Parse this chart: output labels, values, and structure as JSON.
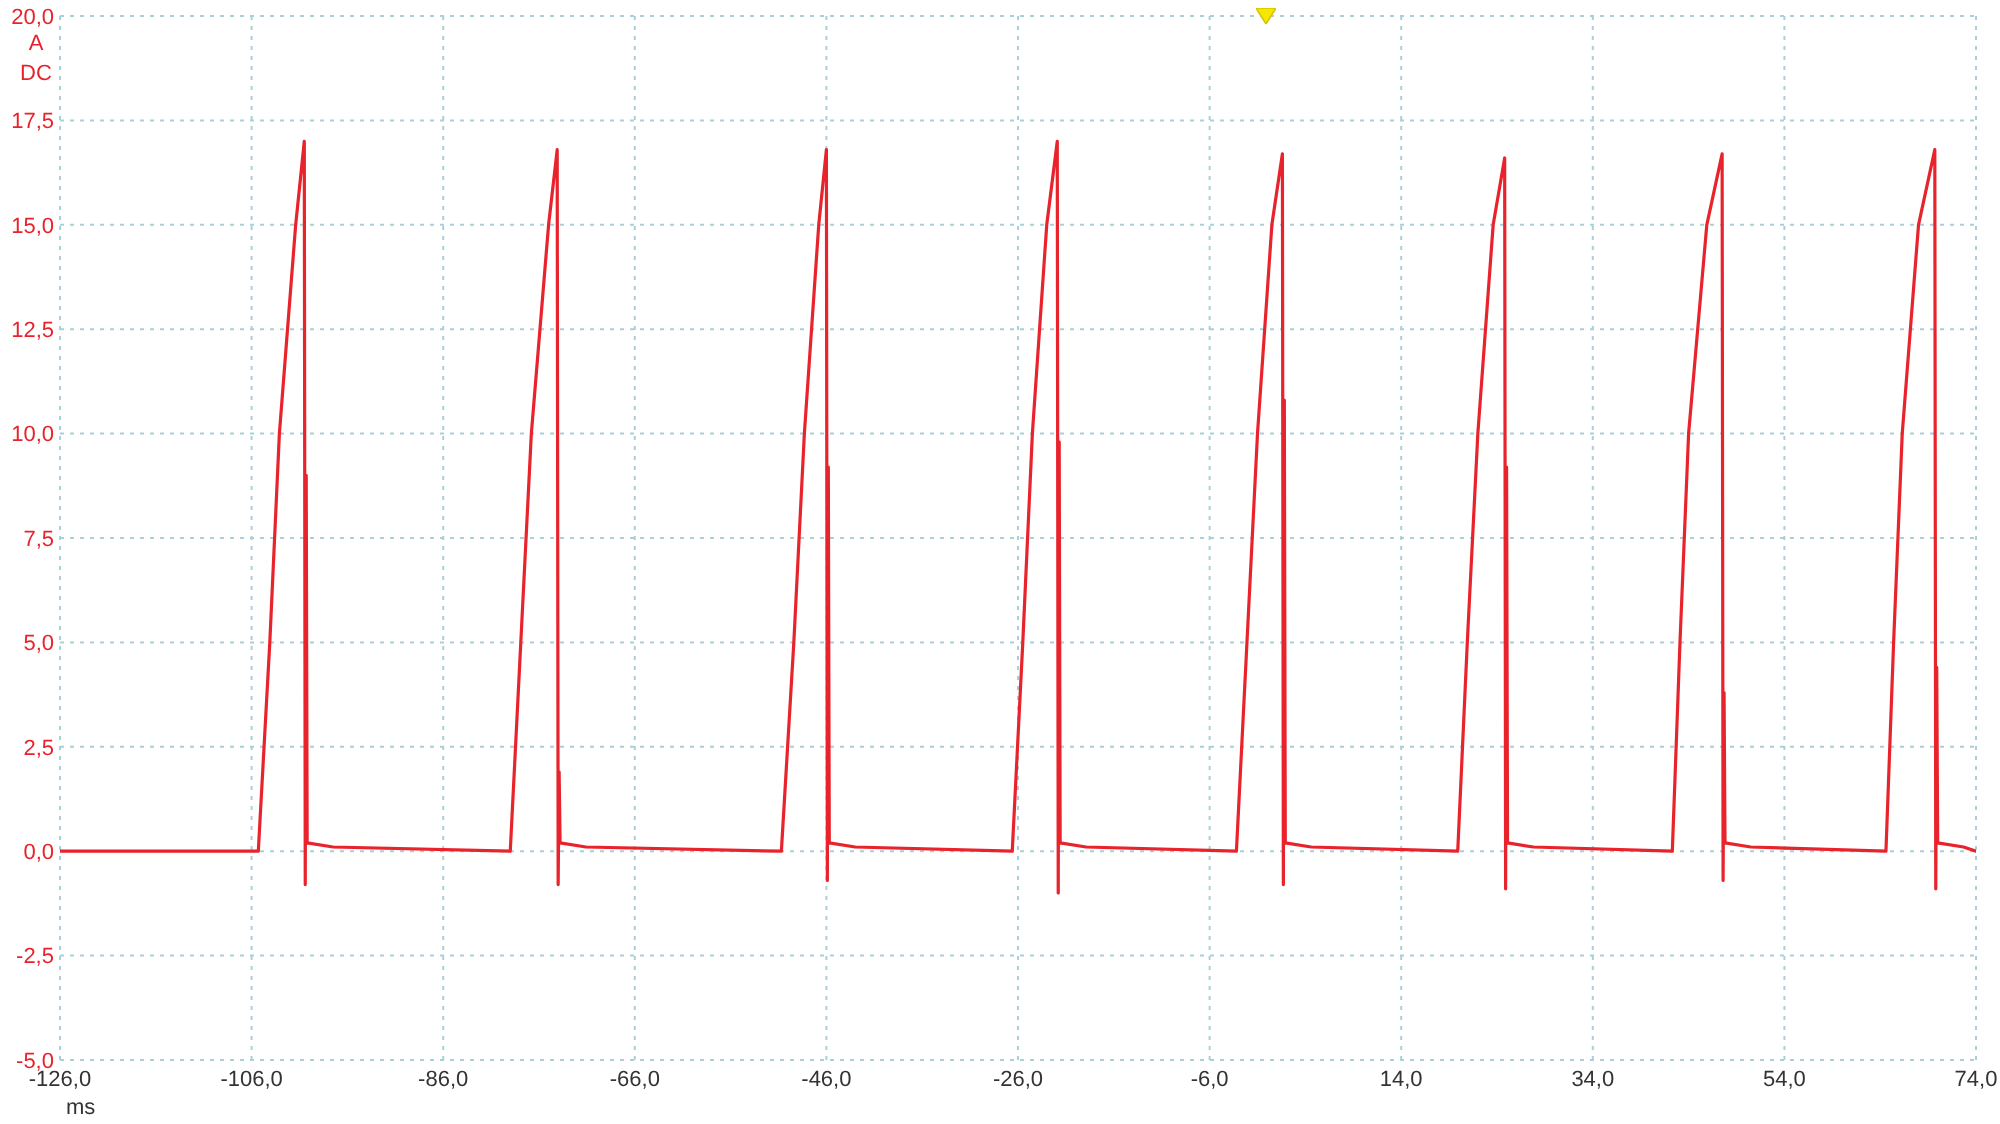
{
  "chart_data": {
    "type": "line",
    "xlabel": "ms",
    "ylabel": "A",
    "annotations": [
      "DC"
    ],
    "x": [
      -126,
      -105.3,
      -104.1,
      -103.1,
      -101.4,
      -100.5,
      -100.4,
      -100.3,
      -100.2,
      -97.5,
      -79.0,
      -77.9,
      -76.8,
      -75.0,
      -74.1,
      -74.0,
      -73.9,
      -73.8,
      -71.1,
      -50.7,
      -49.4,
      -48.3,
      -46.8,
      -46.0,
      -45.9,
      -45.8,
      -45.7,
      -43.0,
      -26.6,
      -25.5,
      -24.5,
      -23.0,
      -21.9,
      -21.8,
      -21.7,
      -21.6,
      -18.9,
      -3.2,
      -2.1,
      -1.0,
      0.5,
      1.6,
      1.7,
      1.8,
      1.9,
      4.6,
      19.9,
      20.9,
      22.0,
      23.6,
      24.8,
      24.9,
      25.0,
      25.1,
      27.8,
      42.3,
      43.1,
      44.0,
      45.9,
      47.5,
      47.6,
      47.7,
      47.8,
      50.5,
      64.6,
      65.4,
      66.3,
      68.0,
      69.7,
      69.8,
      69.9,
      70.0,
      72.7,
      74
    ],
    "series": [
      {
        "color": "#e8232c",
        "values": [
          0,
          0,
          5,
          10,
          15,
          17.0,
          -0.8,
          9.0,
          0.2,
          0.1,
          0,
          5,
          10,
          15,
          16.8,
          -0.8,
          1.9,
          0.2,
          0.1,
          0,
          5,
          10,
          15,
          16.8,
          -0.7,
          9.2,
          0.2,
          0.1,
          0,
          5,
          10,
          15,
          17.0,
          -1.0,
          9.8,
          0.2,
          0.1,
          0,
          5,
          10,
          15,
          16.7,
          -0.8,
          10.8,
          0.2,
          0.1,
          0,
          5,
          10,
          15,
          16.6,
          -0.9,
          9.2,
          0.2,
          0.1,
          0,
          5,
          10,
          15,
          16.7,
          -0.7,
          3.8,
          0.2,
          0.1,
          0,
          5,
          10,
          15,
          16.8,
          -0.9,
          4.4,
          0.2,
          0.1,
          0
        ]
      }
    ],
    "xlim": [
      -126,
      74
    ],
    "xticks": [
      {
        "value": -126,
        "label": "-126,0"
      },
      {
        "value": -106,
        "label": "-106,0"
      },
      {
        "value": -86,
        "label": "-86,0"
      },
      {
        "value": -66,
        "label": "-66,0"
      },
      {
        "value": -46,
        "label": "-46,0"
      },
      {
        "value": -26,
        "label": "-26,0"
      },
      {
        "value": -6,
        "label": "-6,0"
      },
      {
        "value": 14,
        "label": "14,0"
      },
      {
        "value": 34,
        "label": "34,0"
      },
      {
        "value": 54,
        "label": "54,0"
      },
      {
        "value": 74,
        "label": "74,0"
      }
    ],
    "ylim": [
      -5,
      20
    ],
    "yticks": [
      {
        "value": -5,
        "label": "-5,0"
      },
      {
        "value": -2.5,
        "label": "-2,5"
      },
      {
        "value": 0,
        "label": "0,0"
      },
      {
        "value": 2.5,
        "label": "2,5"
      },
      {
        "value": 5,
        "label": "5,0"
      },
      {
        "value": 7.5,
        "label": "7,5"
      },
      {
        "value": 10,
        "label": "10,0"
      },
      {
        "value": 12.5,
        "label": "12,5"
      },
      {
        "value": 15,
        "label": "15,0"
      },
      {
        "value": 17.5,
        "label": "17,5"
      },
      {
        "value": 20,
        "label": "20,0"
      }
    ],
    "grid": true,
    "marker": "none",
    "line_style": "solid"
  }
}
